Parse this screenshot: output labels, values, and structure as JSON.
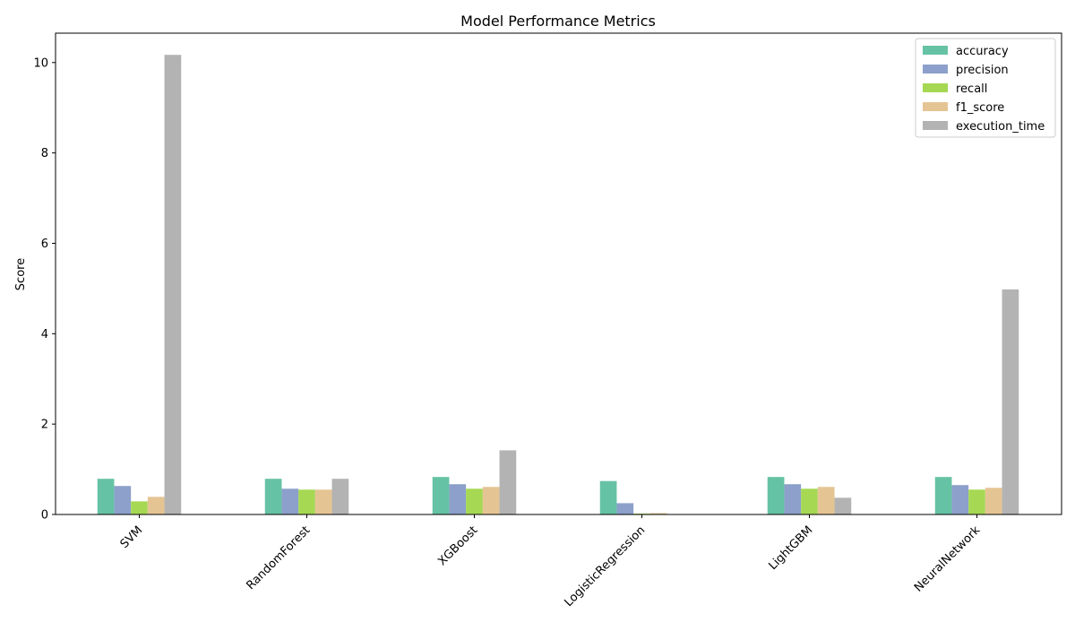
{
  "chart_data": {
    "type": "bar",
    "title": "Model Performance Metrics",
    "xlabel": "",
    "ylabel": "Score",
    "ylim": [
      0,
      10.65
    ],
    "yticks": [
      0,
      2,
      4,
      6,
      8,
      10
    ],
    "ytick_labels": [
      "0",
      "2",
      "4",
      "6",
      "8",
      "10"
    ],
    "categories": [
      "SVM",
      "RandomForest",
      "XGBoost",
      "LogisticRegression",
      "LightGBM",
      "NeuralNetwork"
    ],
    "xtick_rotation": 45,
    "grid": false,
    "legend_position": "top-right",
    "series": [
      {
        "name": "accuracy",
        "color": "#66c2a5",
        "values": [
          0.79,
          0.79,
          0.83,
          0.74,
          0.83,
          0.83
        ]
      },
      {
        "name": "precision",
        "color": "#8da0cb",
        "values": [
          0.63,
          0.57,
          0.67,
          0.25,
          0.67,
          0.65
        ]
      },
      {
        "name": "recall",
        "color": "#a6d854",
        "values": [
          0.29,
          0.55,
          0.57,
          0.02,
          0.57,
          0.55
        ]
      },
      {
        "name": "f1_score",
        "color": "#e5c494",
        "values": [
          0.39,
          0.55,
          0.61,
          0.03,
          0.61,
          0.59
        ]
      },
      {
        "name": "execution_time",
        "color": "#b3b3b3",
        "values": [
          10.17,
          0.79,
          1.42,
          0.01,
          0.37,
          4.98
        ]
      }
    ]
  }
}
